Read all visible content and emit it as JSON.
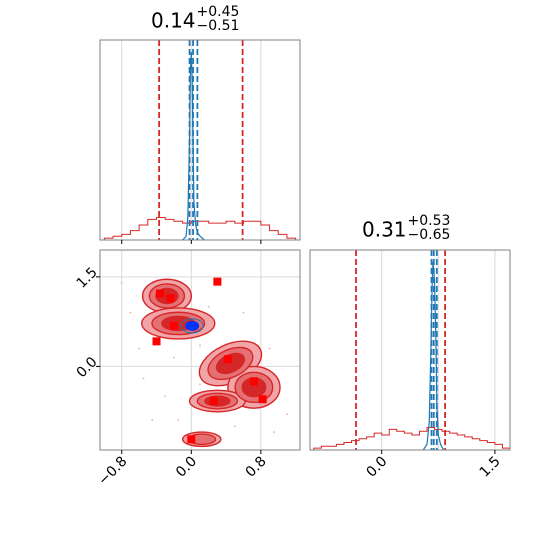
{
  "titles": {
    "top_left": {
      "value": "0.14",
      "plus": "+0.45",
      "minus": "−0.51"
    },
    "bottom_right": {
      "value": "0.31",
      "plus": "+0.53",
      "minus": "−0.65"
    }
  },
  "colors": {
    "red": "#d62728",
    "red_fill_light": "#f2a5a8",
    "red_fill_mid": "#e57073",
    "red_fill_dark": "#d62728",
    "marker_red": "#ff0000",
    "blue_line": "#1f77b4",
    "blue_core": "#0033ff",
    "grid": "#d9d9d9",
    "frame": "#808080"
  },
  "chart_data": [
    {
      "type": "area",
      "panel": "marginal-x",
      "title": "0.14 +0.45 −0.51",
      "xlim": [
        -1.05,
        1.25
      ],
      "red_hist": {
        "edges": [
          -1.0,
          -0.9,
          -0.8,
          -0.7,
          -0.6,
          -0.5,
          -0.4,
          -0.3,
          -0.2,
          -0.1,
          0.0,
          0.1,
          0.2,
          0.3,
          0.4,
          0.5,
          0.6,
          0.7,
          0.8,
          0.9,
          1.0,
          1.1,
          1.2
        ],
        "counts": [
          0.01,
          0.02,
          0.03,
          0.05,
          0.08,
          0.11,
          0.12,
          0.11,
          0.1,
          0.09,
          0.1,
          0.1,
          0.09,
          0.09,
          0.1,
          0.09,
          0.1,
          0.1,
          0.08,
          0.05,
          0.03,
          0.01
        ]
      },
      "red_lines": [
        -0.37,
        0.59
      ],
      "blue_curve": {
        "x": [
          -0.1,
          -0.06,
          -0.04,
          -0.02,
          -0.01,
          0.0,
          0.01,
          0.02,
          0.03,
          0.05,
          0.07,
          0.1,
          0.15
        ],
        "y": [
          0.0,
          0.02,
          0.12,
          0.55,
          0.9,
          1.0,
          0.85,
          0.5,
          0.2,
          0.08,
          0.04,
          0.02,
          0.0
        ]
      },
      "blue_lines": [
        -0.02,
        0.02,
        0.07
      ]
    },
    {
      "type": "area",
      "panel": "marginal-y",
      "title": "0.31 +0.53 −0.65",
      "xlim": [
        -0.95,
        1.7
      ],
      "xticks": [
        "0.0",
        "1.5"
      ],
      "red_hist": {
        "edges": [
          -0.9,
          -0.8,
          -0.7,
          -0.6,
          -0.5,
          -0.4,
          -0.3,
          -0.2,
          -0.1,
          0.0,
          0.1,
          0.2,
          0.3,
          0.4,
          0.5,
          0.6,
          0.7,
          0.8,
          0.9,
          1.0,
          1.1,
          1.2,
          1.3,
          1.4,
          1.5,
          1.6,
          1.7
        ],
        "counts": [
          0.01,
          0.02,
          0.02,
          0.03,
          0.04,
          0.05,
          0.06,
          0.07,
          0.09,
          0.08,
          0.11,
          0.1,
          0.09,
          0.08,
          0.1,
          0.12,
          0.11,
          0.1,
          0.09,
          0.08,
          0.07,
          0.06,
          0.05,
          0.04,
          0.03,
          0.01
        ]
      },
      "red_lines": [
        -0.34,
        0.84
      ],
      "blue_curve": {
        "x": [
          0.55,
          0.6,
          0.63,
          0.65,
          0.67,
          0.68,
          0.7,
          0.72,
          0.73,
          0.75,
          0.78,
          0.82
        ],
        "y": [
          0.0,
          0.03,
          0.15,
          0.5,
          0.9,
          1.0,
          0.9,
          0.55,
          0.25,
          0.08,
          0.03,
          0.0
        ]
      },
      "blue_lines": [
        0.66,
        0.69,
        0.73
      ]
    },
    {
      "type": "scatter",
      "panel": "joint",
      "xlim": [
        -1.05,
        1.25
      ],
      "ylim": [
        -1.4,
        1.95
      ],
      "xticks": [
        "−0.8",
        "0.0",
        "0.8"
      ],
      "yticks": [
        "0.0",
        "1.5"
      ],
      "points": [
        {
          "x": -0.36,
          "y": 1.22
        },
        {
          "x": -0.24,
          "y": 1.14
        },
        {
          "x": 0.3,
          "y": 1.42
        },
        {
          "x": -0.2,
          "y": 0.68
        },
        {
          "x": -0.4,
          "y": 0.42
        },
        {
          "x": 0.42,
          "y": 0.12
        },
        {
          "x": 0.72,
          "y": -0.25
        },
        {
          "x": 0.26,
          "y": -0.58
        },
        {
          "x": 0.82,
          "y": -0.55
        },
        {
          "x": 0.0,
          "y": -1.22
        }
      ],
      "blue_peak": {
        "x": 0.01,
        "y": 0.68
      }
    }
  ]
}
